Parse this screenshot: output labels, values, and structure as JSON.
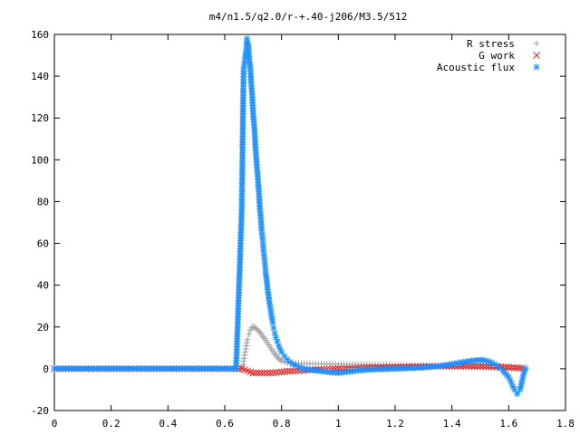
{
  "chart_data": {
    "type": "scatter",
    "title": "m4/n1.5/q2.0/r-+.40-j206/M3.5/512",
    "xlabel": "",
    "ylabel": "",
    "xlim": [
      0,
      1.8
    ],
    "ylim": [
      -20,
      160
    ],
    "x_ticks": [
      "0",
      "0.2",
      "0.4",
      "0.6",
      "0.8",
      "1",
      "1.2",
      "1.4",
      "1.6",
      "1.8"
    ],
    "y_ticks": [
      "160",
      "140",
      "120",
      "100",
      "80",
      "60",
      "40",
      "20",
      "0",
      "-20"
    ],
    "grid": false,
    "legend_position": "top-right",
    "series": [
      {
        "name": "R stress",
        "marker": "plus",
        "color": "#a0a0a0",
        "points": [
          [
            0.0,
            0
          ],
          [
            0.1,
            0
          ],
          [
            0.2,
            0
          ],
          [
            0.3,
            0
          ],
          [
            0.4,
            0
          ],
          [
            0.5,
            0
          ],
          [
            0.6,
            0
          ],
          [
            0.655,
            0
          ],
          [
            0.665,
            2
          ],
          [
            0.668,
            5
          ],
          [
            0.672,
            8
          ],
          [
            0.676,
            11
          ],
          [
            0.68,
            14
          ],
          [
            0.685,
            16.5
          ],
          [
            0.69,
            18.5
          ],
          [
            0.695,
            19.5
          ],
          [
            0.7,
            20
          ],
          [
            0.705,
            19.8
          ],
          [
            0.71,
            19.3
          ],
          [
            0.715,
            18.7
          ],
          [
            0.72,
            18
          ],
          [
            0.725,
            17.2
          ],
          [
            0.73,
            16.3
          ],
          [
            0.735,
            15.4
          ],
          [
            0.74,
            14.5
          ],
          [
            0.745,
            13.5
          ],
          [
            0.75,
            12.5
          ],
          [
            0.755,
            11.4
          ],
          [
            0.76,
            10.3
          ],
          [
            0.765,
            9.3
          ],
          [
            0.77,
            8.3
          ],
          [
            0.775,
            7.3
          ],
          [
            0.78,
            6.4
          ],
          [
            0.785,
            5.6
          ],
          [
            0.79,
            4.9
          ],
          [
            0.795,
            4.3
          ],
          [
            0.8,
            3.8
          ],
          [
            0.81,
            3.2
          ],
          [
            0.82,
            2.9
          ],
          [
            0.83,
            2.7
          ],
          [
            0.84,
            2.6
          ],
          [
            0.86,
            2.5
          ],
          [
            0.88,
            2.5
          ],
          [
            0.9,
            2.4
          ],
          [
            0.95,
            2.3
          ],
          [
            1.0,
            2.2
          ],
          [
            1.05,
            2.1
          ],
          [
            1.1,
            2.0
          ],
          [
            1.15,
            1.9
          ],
          [
            1.2,
            1.8
          ],
          [
            1.25,
            1.6
          ],
          [
            1.3,
            1.5
          ],
          [
            1.35,
            1.3
          ],
          [
            1.4,
            1.1
          ],
          [
            1.45,
            0.9
          ],
          [
            1.5,
            0.7
          ],
          [
            1.55,
            0.5
          ],
          [
            1.6,
            0.4
          ],
          [
            1.65,
            0.2
          ]
        ]
      },
      {
        "name": "G work",
        "marker": "cross",
        "color": "#e02020",
        "points": [
          [
            0.0,
            0
          ],
          [
            0.1,
            0
          ],
          [
            0.2,
            0
          ],
          [
            0.3,
            0
          ],
          [
            0.4,
            0
          ],
          [
            0.5,
            0
          ],
          [
            0.6,
            0
          ],
          [
            0.66,
            0
          ],
          [
            0.67,
            -0.5
          ],
          [
            0.68,
            -1
          ],
          [
            0.69,
            -1.5
          ],
          [
            0.7,
            -2
          ],
          [
            0.72,
            -2
          ],
          [
            0.74,
            -2
          ],
          [
            0.76,
            -2
          ],
          [
            0.78,
            -1.8
          ],
          [
            0.8,
            -1.5
          ],
          [
            0.82,
            -1.2
          ],
          [
            0.85,
            -1
          ],
          [
            0.88,
            -0.8
          ],
          [
            0.9,
            -0.5
          ],
          [
            0.95,
            -0.3
          ],
          [
            1.0,
            0
          ],
          [
            1.05,
            0.2
          ],
          [
            1.1,
            0.4
          ],
          [
            1.15,
            0.6
          ],
          [
            1.2,
            0.8
          ],
          [
            1.25,
            1.0
          ],
          [
            1.3,
            1.1
          ],
          [
            1.35,
            1.2
          ],
          [
            1.4,
            1.3
          ],
          [
            1.45,
            1.3
          ],
          [
            1.5,
            1.2
          ],
          [
            1.55,
            1.0
          ],
          [
            1.6,
            0.7
          ],
          [
            1.62,
            0.5
          ],
          [
            1.65,
            0.3
          ]
        ]
      },
      {
        "name": "Acoustic flux",
        "marker": "star",
        "color": "#1e90ff",
        "points": [
          [
            0.0,
            0
          ],
          [
            0.05,
            0
          ],
          [
            0.1,
            0
          ],
          [
            0.15,
            0
          ],
          [
            0.2,
            0
          ],
          [
            0.25,
            0
          ],
          [
            0.3,
            0
          ],
          [
            0.35,
            0
          ],
          [
            0.4,
            0
          ],
          [
            0.45,
            0
          ],
          [
            0.5,
            0
          ],
          [
            0.55,
            0
          ],
          [
            0.6,
            0
          ],
          [
            0.64,
            0
          ],
          [
            0.66,
            77
          ],
          [
            0.665,
            131
          ],
          [
            0.667,
            144
          ],
          [
            0.672,
            149
          ],
          [
            0.676,
            153
          ],
          [
            0.678,
            158
          ],
          [
            0.68,
            156
          ],
          [
            0.683,
            155
          ],
          [
            0.686,
            148
          ],
          [
            0.69,
            144
          ],
          [
            0.693,
            137
          ],
          [
            0.697,
            130
          ],
          [
            0.7,
            122
          ],
          [
            0.705,
            114
          ],
          [
            0.708,
            106
          ],
          [
            0.712,
            99
          ],
          [
            0.716,
            92
          ],
          [
            0.72,
            85
          ],
          [
            0.723,
            78
          ],
          [
            0.727,
            72
          ],
          [
            0.73,
            66
          ],
          [
            0.734,
            61
          ],
          [
            0.737,
            56
          ],
          [
            0.741,
            51
          ],
          [
            0.744,
            46
          ],
          [
            0.748,
            42
          ],
          [
            0.751,
            38
          ],
          [
            0.755,
            34
          ],
          [
            0.758,
            31
          ],
          [
            0.762,
            28
          ],
          [
            0.765,
            25
          ],
          [
            0.769,
            22
          ],
          [
            0.772,
            19.5
          ],
          [
            0.776,
            17
          ],
          [
            0.78,
            15
          ],
          [
            0.785,
            13
          ],
          [
            0.79,
            11
          ],
          [
            0.795,
            9.5
          ],
          [
            0.8,
            8
          ],
          [
            0.81,
            6
          ],
          [
            0.82,
            4.5
          ],
          [
            0.83,
            3.2
          ],
          [
            0.84,
            2.2
          ],
          [
            0.86,
            1
          ],
          [
            0.88,
            0
          ],
          [
            0.9,
            -0.5
          ],
          [
            0.93,
            -1
          ],
          [
            0.96,
            -1.5
          ],
          [
            0.98,
            -1.8
          ],
          [
            1.0,
            -2
          ],
          [
            1.03,
            -1.5
          ],
          [
            1.06,
            -1
          ],
          [
            1.1,
            -0.5
          ],
          [
            1.15,
            -0.2
          ],
          [
            1.2,
            0
          ],
          [
            1.25,
            0.3
          ],
          [
            1.3,
            0.6
          ],
          [
            1.35,
            1.2
          ],
          [
            1.4,
            2.2
          ],
          [
            1.44,
            3.2
          ],
          [
            1.48,
            4
          ],
          [
            1.5,
            4.2
          ],
          [
            1.52,
            3.9
          ],
          [
            1.54,
            3
          ],
          [
            1.56,
            1.5
          ],
          [
            1.58,
            -1
          ],
          [
            1.6,
            -4
          ],
          [
            1.61,
            -7
          ],
          [
            1.62,
            -10
          ],
          [
            1.63,
            -12
          ],
          [
            1.64,
            -10
          ],
          [
            1.645,
            -7
          ],
          [
            1.65,
            -4
          ],
          [
            1.655,
            -1
          ],
          [
            1.66,
            0
          ]
        ]
      }
    ]
  }
}
